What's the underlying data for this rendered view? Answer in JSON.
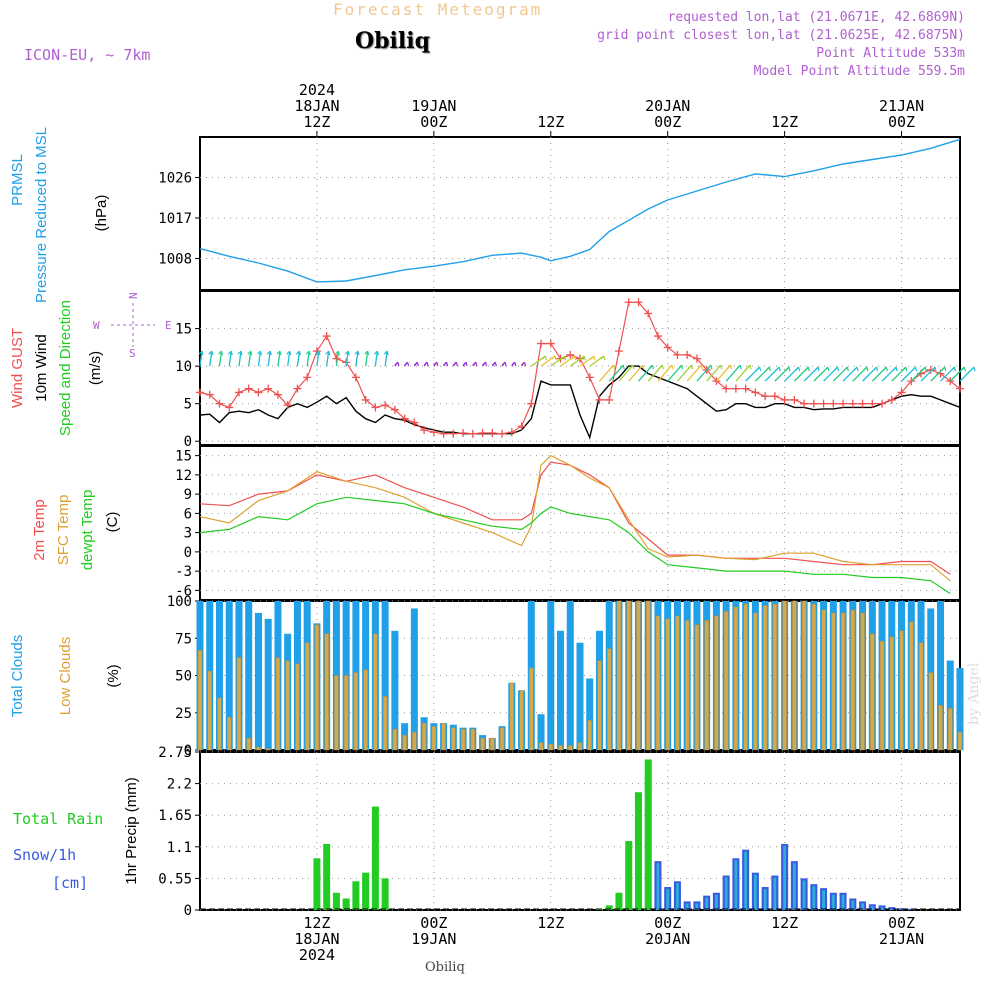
{
  "header": {
    "title": "Forecast Meteogram",
    "station": "Obiliq",
    "model": "ICON-EU, ~ 7km",
    "requested": "requested lon,lat (21.0671E, 42.6869N)",
    "gridpoint": "grid point closest lon,lat (21.0625E, 42.6875N)",
    "point_alt": "Point Altitude 533m",
    "model_alt": "Model Point Altitude 559.5m",
    "credit": "by Angel",
    "footer_station": "Obiliq"
  },
  "colors": {
    "blue": "#1fa0e8",
    "red": "#f05050",
    "black": "#000000",
    "green": "#22cc22",
    "orange": "#e0a030",
    "lowcloud": "#d4a94e",
    "purple": "#b060d0",
    "snow": "#3a5ae0",
    "title": "#f0c890"
  },
  "time_axis": {
    "top_labels": [
      {
        "t": 12,
        "lines": [
          "2024",
          "18JAN",
          "12Z"
        ]
      },
      {
        "t": 24,
        "lines": [
          "19JAN",
          "00Z"
        ]
      },
      {
        "t": 36,
        "lines": [
          "12Z"
        ]
      },
      {
        "t": 48,
        "lines": [
          "20JAN",
          "00Z"
        ]
      },
      {
        "t": 60,
        "lines": [
          "12Z"
        ]
      },
      {
        "t": 72,
        "lines": [
          "21JAN",
          "00Z"
        ]
      }
    ],
    "bottom_labels": [
      {
        "t": 12,
        "lines": [
          "12Z",
          "18JAN",
          "2024"
        ]
      },
      {
        "t": 24,
        "lines": [
          "00Z",
          "19JAN"
        ]
      },
      {
        "t": 36,
        "lines": [
          "12Z"
        ]
      },
      {
        "t": 48,
        "lines": [
          "00Z",
          "20JAN"
        ]
      },
      {
        "t": 60,
        "lines": [
          "12Z"
        ]
      },
      {
        "t": 72,
        "lines": [
          "00Z",
          "21JAN"
        ]
      }
    ],
    "range_hours": [
      0,
      78
    ]
  },
  "chart_data": [
    {
      "type": "line",
      "id": "pressure",
      "labels": {
        "c1": "PRMSL",
        "c2": "Pressure Reduced to MSL",
        "unit": "(hPa)"
      },
      "yticks": [
        1008,
        1017,
        1026
      ],
      "ylim": [
        1001,
        1035
      ],
      "x": [
        0,
        3,
        6,
        9,
        12,
        15,
        18,
        21,
        24,
        27,
        30,
        33,
        35,
        36,
        38,
        40,
        42,
        44,
        46,
        48,
        51,
        54,
        57,
        60,
        63,
        66,
        69,
        72,
        75,
        78
      ],
      "series": [
        {
          "values": [
            1010.2,
            1008.5,
            1007.0,
            1005.2,
            1002.8,
            1003.0,
            1004.2,
            1005.5,
            1006.3,
            1007.3,
            1008.7,
            1009.2,
            1008.3,
            1007.5,
            1008.5,
            1010.0,
            1014.0,
            1016.5,
            1019.0,
            1021.0,
            1023.0,
            1025.0,
            1026.8,
            1026.2,
            1027.5,
            1029.0,
            1030.0,
            1031.0,
            1032.5,
            1034.5
          ]
        }
      ]
    },
    {
      "type": "line",
      "id": "wind",
      "labels": {
        "c1": "Wind GUST",
        "c2": "10m Wind",
        "c3": "Speed and Direction",
        "unit": "(m/s)"
      },
      "compass": {
        "n": "N",
        "s": "S",
        "e": "E",
        "w": "W"
      },
      "yticks": [
        0,
        5,
        10,
        15
      ],
      "ylim": [
        -0.5,
        20
      ],
      "x": [
        0,
        1,
        2,
        3,
        4,
        5,
        6,
        7,
        8,
        9,
        10,
        11,
        12,
        13,
        14,
        15,
        16,
        17,
        18,
        19,
        20,
        21,
        22,
        23,
        24,
        25,
        26,
        27,
        28,
        29,
        30,
        31,
        32,
        33,
        34,
        35,
        36,
        37,
        38,
        39,
        40,
        41,
        42,
        43,
        44,
        45,
        46,
        47,
        48,
        49,
        50,
        51,
        52,
        53,
        54,
        55,
        56,
        57,
        58,
        59,
        60,
        61,
        62,
        63,
        64,
        65,
        66,
        67,
        68,
        69,
        70,
        71,
        72,
        73,
        74,
        75,
        76,
        77,
        78
      ],
      "series": [
        {
          "name": "Wind GUST",
          "values": [
            6.5,
            6.2,
            5.0,
            4.5,
            6.5,
            7.0,
            6.5,
            7.0,
            6.2,
            4.8,
            7.0,
            8.5,
            12.0,
            14.0,
            11.0,
            10.5,
            8.5,
            5.5,
            4.5,
            4.8,
            4.2,
            3.0,
            2.5,
            1.5,
            1.2,
            1.0,
            1.0,
            1.1,
            1.0,
            1.1,
            1.1,
            1.0,
            1.2,
            2.0,
            5.0,
            13.0,
            13.0,
            11.0,
            11.5,
            11.0,
            8.5,
            5.5,
            5.5,
            12.0,
            18.5,
            18.5,
            17.0,
            14.0,
            12.5,
            11.5,
            11.5,
            11.0,
            9.5,
            8.0,
            7.0,
            7.0,
            7.0,
            6.5,
            6.0,
            6.0,
            5.5,
            5.5,
            5.0,
            5.0,
            5.0,
            5.0,
            5.0,
            5.0,
            5.0,
            5.0,
            5.0,
            5.5,
            6.5,
            8.0,
            9.0,
            9.5,
            9.0,
            8.0,
            7.0
          ]
        },
        {
          "name": "10m Wind",
          "values": [
            3.5,
            3.6,
            2.5,
            3.8,
            4.0,
            3.8,
            4.2,
            3.5,
            3.0,
            4.5,
            5.0,
            4.5,
            5.2,
            6.0,
            5.0,
            5.8,
            4.0,
            3.0,
            2.5,
            3.5,
            3.0,
            2.8,
            2.2,
            1.8,
            1.5,
            1.2,
            1.2,
            1.0,
            1.0,
            1.0,
            1.0,
            1.0,
            1.0,
            1.5,
            3.0,
            8.0,
            7.5,
            7.5,
            7.5,
            3.5,
            0.5,
            6.0,
            7.5,
            8.5,
            10.0,
            10.0,
            9.0,
            8.5,
            8.0,
            7.5,
            7.0,
            6.0,
            5.0,
            4.0,
            4.2,
            5.0,
            5.0,
            4.5,
            4.5,
            5.0,
            5.0,
            4.5,
            4.5,
            4.2,
            4.3,
            4.3,
            4.5,
            4.5,
            4.5,
            4.5,
            5.0,
            5.5,
            6.0,
            6.2,
            6.0,
            6.0,
            5.5,
            5.0,
            4.5
          ]
        }
      ],
      "wind_barbs_at": [
        0,
        1,
        2,
        3,
        4,
        5,
        6,
        7,
        8,
        9,
        10,
        11,
        12,
        13,
        14,
        15,
        16,
        17,
        18,
        19,
        20,
        21,
        22,
        23,
        24,
        25,
        26,
        27,
        28,
        29,
        30,
        31,
        32,
        33,
        34,
        35,
        36,
        37,
        38,
        39,
        40,
        41,
        42,
        43,
        44,
        45,
        46,
        47,
        48,
        49,
        50,
        51,
        52,
        53,
        54,
        55,
        56,
        57,
        58,
        59,
        60,
        61,
        62,
        63,
        64,
        65,
        66,
        67,
        68,
        69,
        70,
        71,
        72,
        73,
        74,
        75,
        76,
        77,
        78
      ]
    },
    {
      "type": "line",
      "id": "temp",
      "labels": {
        "c1": "2m Temp",
        "c2": "SFC Temp",
        "c3": "dewpt Temp",
        "unit": "(C)"
      },
      "yticks": [
        -6,
        -3,
        0,
        3,
        6,
        9,
        12,
        15
      ],
      "ylim": [
        -7.5,
        16.5
      ],
      "x": [
        0,
        3,
        6,
        9,
        12,
        15,
        18,
        21,
        24,
        27,
        30,
        33,
        34,
        35,
        36,
        38,
        40,
        42,
        44,
        46,
        48,
        51,
        54,
        57,
        60,
        63,
        66,
        69,
        72,
        75,
        77
      ],
      "series": [
        {
          "name": "2m Temp",
          "values": [
            7.5,
            7.2,
            9.0,
            9.5,
            12.0,
            11.0,
            12.0,
            10.0,
            8.5,
            7.0,
            5.0,
            5.0,
            6.0,
            12.0,
            14.0,
            13.5,
            12.0,
            10.0,
            4.5,
            2.0,
            -0.5,
            -0.5,
            -1.0,
            -1.0,
            -1.0,
            -1.5,
            -2.0,
            -2.0,
            -1.5,
            -1.5,
            -3.5
          ]
        },
        {
          "name": "SFC Temp",
          "values": [
            5.5,
            4.5,
            8.0,
            9.5,
            12.5,
            11.0,
            10.0,
            8.5,
            6.0,
            4.5,
            3.0,
            1.0,
            4.0,
            13.5,
            15.0,
            13.5,
            11.5,
            10.0,
            5.0,
            0.5,
            -0.8,
            -0.5,
            -1.0,
            -1.2,
            -0.2,
            -0.2,
            -1.5,
            -2.0,
            -2.0,
            -2.0,
            -4.5
          ]
        },
        {
          "name": "dewpt Temp",
          "values": [
            3.0,
            3.5,
            5.5,
            5.0,
            7.5,
            8.5,
            8.0,
            7.5,
            6.0,
            5.0,
            4.0,
            3.5,
            4.5,
            6.0,
            7.0,
            6.0,
            5.5,
            5.0,
            3.0,
            0.0,
            -2.0,
            -2.5,
            -3.0,
            -3.0,
            -3.0,
            -3.5,
            -3.5,
            -4.0,
            -4.0,
            -4.5,
            -6.5
          ]
        }
      ]
    },
    {
      "type": "bar",
      "id": "clouds",
      "labels": {
        "c1": "Total Clouds",
        "c2": "Low Clouds",
        "unit": "(%)"
      },
      "yticks": [
        0,
        25,
        50,
        75,
        100
      ],
      "ylim": [
        0,
        100
      ],
      "x": [
        0,
        1,
        2,
        3,
        4,
        5,
        6,
        7,
        8,
        9,
        10,
        11,
        12,
        13,
        14,
        15,
        16,
        17,
        18,
        19,
        20,
        21,
        22,
        23,
        24,
        25,
        26,
        27,
        28,
        29,
        30,
        31,
        32,
        33,
        34,
        35,
        36,
        37,
        38,
        39,
        40,
        41,
        42,
        43,
        44,
        45,
        46,
        47,
        48,
        49,
        50,
        51,
        52,
        53,
        54,
        55,
        56,
        57,
        58,
        59,
        60,
        61,
        62,
        63,
        64,
        65,
        66,
        67,
        68,
        69,
        70,
        71,
        72,
        73,
        74,
        75,
        76,
        77,
        78
      ],
      "series": [
        {
          "name": "Total Clouds",
          "values": [
            100,
            100,
            100,
            100,
            100,
            100,
            92,
            88,
            100,
            78,
            100,
            100,
            85,
            100,
            100,
            100,
            100,
            100,
            100,
            100,
            80,
            18,
            95,
            22,
            18,
            18,
            17,
            15,
            15,
            10,
            8,
            16,
            45,
            40,
            100,
            24,
            100,
            80,
            100,
            72,
            48,
            80,
            100,
            100,
            100,
            100,
            100,
            100,
            100,
            100,
            100,
            100,
            100,
            100,
            100,
            100,
            100,
            100,
            100,
            100,
            100,
            100,
            100,
            100,
            100,
            100,
            100,
            100,
            100,
            100,
            100,
            100,
            100,
            100,
            100,
            95,
            100,
            60,
            55
          ]
        },
        {
          "name": "Low Clouds",
          "values": [
            67,
            53,
            35,
            22,
            62,
            8,
            2,
            1,
            62,
            60,
            58,
            72,
            84,
            78,
            50,
            50,
            52,
            54,
            78,
            36,
            14,
            10,
            12,
            18,
            16,
            18,
            15,
            14,
            14,
            8,
            8,
            15,
            45,
            40,
            55,
            5,
            4,
            3,
            3,
            5,
            20,
            60,
            68,
            100,
            100,
            100,
            100,
            90,
            88,
            90,
            87,
            84,
            87,
            90,
            93,
            96,
            98,
            92,
            97,
            98,
            100,
            100,
            100,
            98,
            94,
            92,
            92,
            94,
            92,
            78,
            73,
            76,
            80,
            86,
            72,
            52,
            30,
            28,
            12
          ]
        }
      ]
    },
    {
      "type": "bar",
      "id": "precip",
      "labels": {
        "c1": "Total Rain",
        "c2": "Snow/1h",
        "c3": "[cm]",
        "unit": "1hr Precip (mm)"
      },
      "yticks": [
        0,
        0.55,
        1.1,
        1.65,
        2.2,
        2.75
      ],
      "ylim": [
        0,
        2.75
      ],
      "x": [
        0,
        1,
        2,
        3,
        4,
        5,
        6,
        7,
        8,
        9,
        10,
        11,
        12,
        13,
        14,
        15,
        16,
        17,
        18,
        19,
        20,
        21,
        22,
        23,
        24,
        25,
        26,
        27,
        28,
        29,
        30,
        31,
        32,
        33,
        34,
        35,
        36,
        37,
        38,
        39,
        40,
        41,
        42,
        43,
        44,
        45,
        46,
        47,
        48,
        49,
        50,
        51,
        52,
        53,
        54,
        55,
        56,
        57,
        58,
        59,
        60,
        61,
        62,
        63,
        64,
        65,
        66,
        67,
        68,
        69,
        70,
        71,
        72,
        73,
        74,
        75,
        76,
        77,
        78
      ],
      "series": [
        {
          "name": "Total Rain",
          "values": [
            0,
            0,
            0,
            0,
            0,
            0,
            0,
            0,
            0,
            0,
            0,
            0,
            0.9,
            1.15,
            0.3,
            0.2,
            0.5,
            0.65,
            1.8,
            0.55,
            0,
            0,
            0,
            0,
            0,
            0,
            0,
            0,
            0,
            0,
            0,
            0,
            0,
            0,
            0,
            0,
            0,
            0,
            0,
            0,
            0,
            0.02,
            0.08,
            0.3,
            1.2,
            2.05,
            2.62,
            0.2,
            0,
            0,
            0,
            0,
            0,
            0,
            0,
            0,
            0,
            0,
            0,
            0,
            0,
            0,
            0,
            0,
            0,
            0,
            0,
            0,
            0,
            0,
            0,
            0,
            0,
            0,
            0,
            0,
            0,
            0,
            0
          ]
        },
        {
          "name": "Snow/1h",
          "values": [
            0,
            0,
            0,
            0,
            0,
            0,
            0,
            0,
            0,
            0,
            0,
            0,
            0,
            0,
            0,
            0,
            0,
            0,
            0,
            0,
            0,
            0,
            0,
            0,
            0,
            0,
            0,
            0,
            0,
            0,
            0,
            0,
            0,
            0,
            0,
            0,
            0,
            0,
            0,
            0,
            0,
            0,
            0,
            0,
            0,
            0,
            0,
            0.85,
            0.4,
            0.5,
            0.15,
            0.15,
            0.25,
            0.3,
            0.6,
            0.9,
            1.05,
            0.65,
            0.4,
            0.6,
            1.15,
            0.85,
            0.55,
            0.45,
            0.38,
            0.3,
            0.3,
            0.2,
            0.15,
            0.1,
            0.08,
            0.05,
            0.03,
            0.02,
            0,
            0,
            0,
            0,
            0
          ]
        }
      ]
    }
  ]
}
